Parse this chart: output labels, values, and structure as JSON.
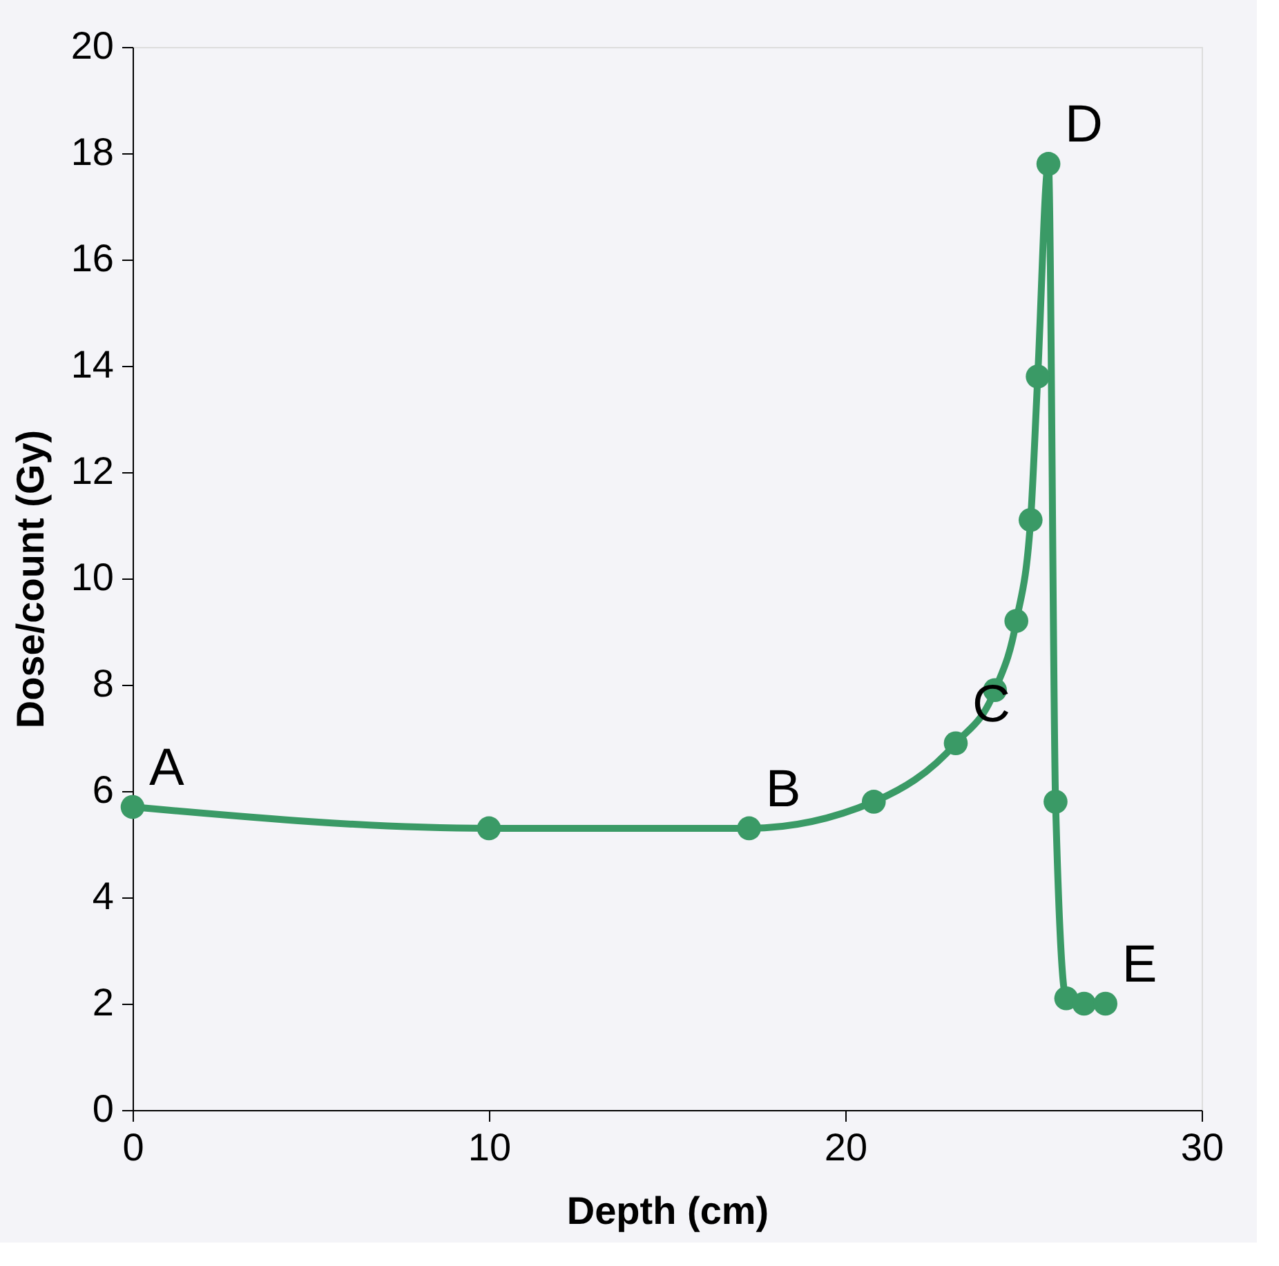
{
  "chart_data": {
    "type": "line",
    "xlabel": "Depth (cm)",
    "ylabel": "Dose/count (Gy)",
    "x": [
      0,
      10,
      17.3,
      20.8,
      23.1,
      24.2,
      24.8,
      25.2,
      25.4,
      25.7,
      25.9,
      26.2,
      26.7,
      27.3
    ],
    "series": [
      {
        "color": "#3a9a66",
        "values": [
          5.7,
          5.3,
          5.3,
          5.8,
          6.9,
          7.9,
          9.2,
          11.1,
          13.8,
          17.8,
          5.8,
          2.1,
          2.0,
          2.0
        ]
      }
    ],
    "xlim": [
      0,
      30
    ],
    "xticks": [
      0,
      10,
      20,
      30
    ],
    "ylim": [
      0,
      20
    ],
    "yticks": [
      0,
      2,
      4,
      6,
      8,
      10,
      12,
      14,
      16,
      18,
      20
    ],
    "marker": "circle",
    "line_style": "solid",
    "grid": false,
    "legend": false,
    "annotations": [
      {
        "text": "A",
        "x": 0,
        "y": 5.7
      },
      {
        "text": "B",
        "x": 17.3,
        "y": 5.3
      },
      {
        "text": "C",
        "x": 23.1,
        "y": 6.9
      },
      {
        "text": "D",
        "x": 25.7,
        "y": 17.8
      },
      {
        "text": "E",
        "x": 27.3,
        "y": 2.0
      }
    ]
  }
}
